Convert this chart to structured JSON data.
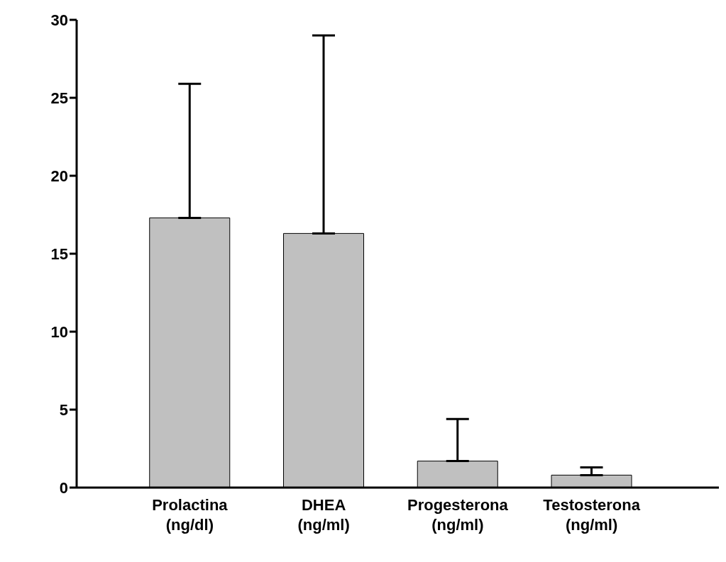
{
  "chart_data": {
    "type": "bar",
    "categories": [
      "Prolactina\n(ng/dl)",
      "DHEA\n(ng/ml)",
      "Progesterona\n(ng/ml)",
      "Testosterona\n(ng/ml)"
    ],
    "values": [
      17.3,
      16.3,
      1.7,
      0.8
    ],
    "errors": [
      [
        17.3,
        25.9
      ],
      [
        16.3,
        29.0
      ],
      [
        1.7,
        4.4
      ],
      [
        0.8,
        1.3
      ]
    ],
    "color": "#c0c0c0",
    "ylim": [
      0,
      30
    ],
    "yticks": [
      0,
      5,
      10,
      15,
      20,
      25,
      30
    ],
    "grid": false,
    "legend": false
  }
}
